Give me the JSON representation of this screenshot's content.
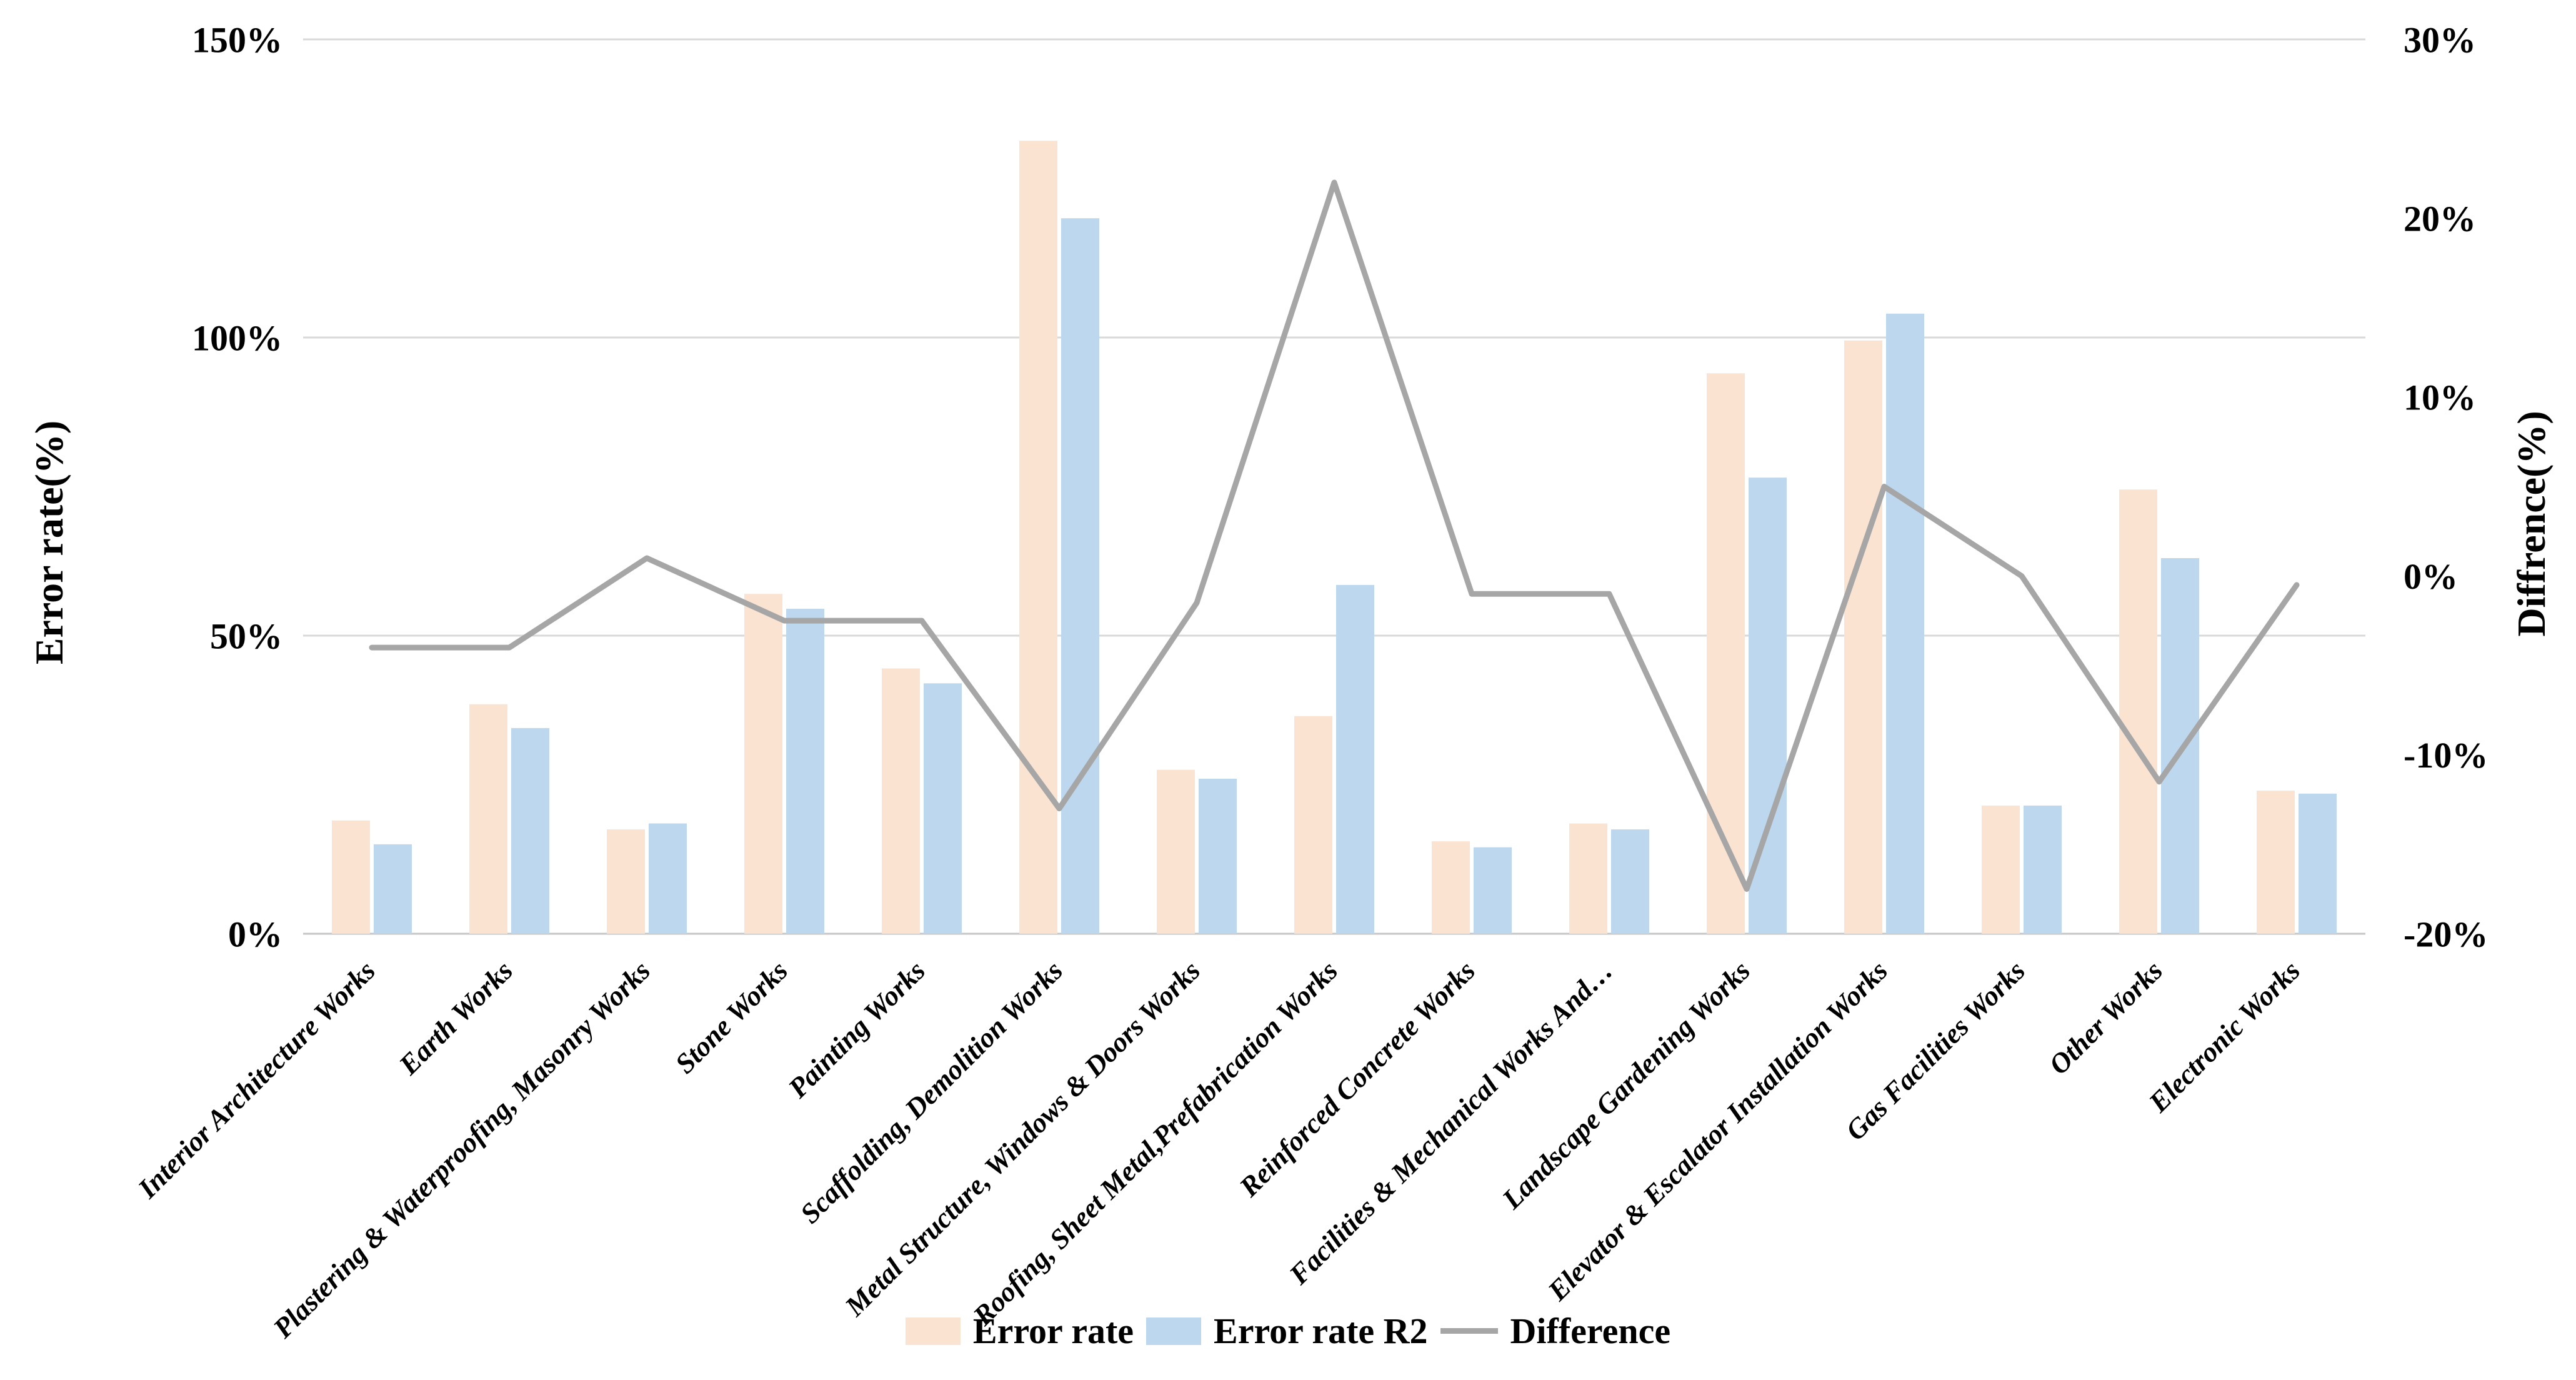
{
  "chart_data": {
    "type": "bar",
    "subtype": "combo-bar-line-dual-axis",
    "title": "",
    "categories": [
      "Interior Architecture Works",
      "Earth Works",
      "Plastering & Waterproofing, Masonry Works",
      "Stone Works",
      "Painting Works",
      "Scaffolding, Demolition Works",
      "Metal Structure, Windows & Doors Works",
      "Roofing, Sheet Metal,Prefabrication Works",
      "Reinforced Concrete Works",
      "Facilities & Mechanical Works And…",
      "Landscape Gardening Works",
      "Elevator & Escalator Installation Works",
      "Gas Facilities Works",
      "Other Works",
      "Electronic Works"
    ],
    "series": [
      {
        "name": "Error rate",
        "type": "bar",
        "axis": "left",
        "color": "#FBE3D2",
        "values": [
          19,
          38.5,
          17.5,
          57,
          44.5,
          133,
          27.5,
          36.5,
          15.5,
          18.5,
          94,
          99.5,
          21.5,
          74.5,
          24
        ]
      },
      {
        "name": "Error rate R2",
        "type": "bar",
        "axis": "left",
        "color": "#BDD7EE",
        "values": [
          15,
          34.5,
          18.5,
          54.5,
          42,
          120,
          26,
          58.5,
          14.5,
          17.5,
          76.5,
          104,
          21.5,
          63,
          23.5
        ]
      },
      {
        "name": "Difference",
        "type": "line",
        "axis": "right",
        "color": "#A6A6A6",
        "values": [
          -4,
          -4,
          1,
          -2.5,
          -2.5,
          -13,
          -1.5,
          22,
          -1,
          -1,
          -17.5,
          5,
          0,
          -11.5,
          -0.5
        ]
      }
    ],
    "left_axis": {
      "title": "Error rate(%)",
      "min": 0,
      "max": 150,
      "step": 50,
      "tick_labels": [
        "0%",
        "50%",
        "100%",
        "150%"
      ]
    },
    "right_axis": {
      "title": "Diffrence(%)",
      "min": -20,
      "max": 30,
      "step": 10,
      "tick_labels": [
        "-20%",
        "-10%",
        "0%",
        "10%",
        "20%",
        "30%"
      ]
    },
    "legend": {
      "position": "bottom-center",
      "entries": [
        "Error rate",
        "Error rate R2",
        "Difference"
      ]
    },
    "grid": {
      "horizontal": true,
      "vertical": false,
      "color": "#D9D9D9"
    },
    "x_label_rotation_deg": 45
  },
  "colors": {
    "background": "#FFFFFF",
    "text": "#000000",
    "bar_error_rate": "#FBE3D2",
    "bar_error_rate_r2": "#BDD7EE",
    "difference_line": "#A6A6A6",
    "gridline": "#D9D9D9",
    "axis_line": "#C6C6C6"
  }
}
